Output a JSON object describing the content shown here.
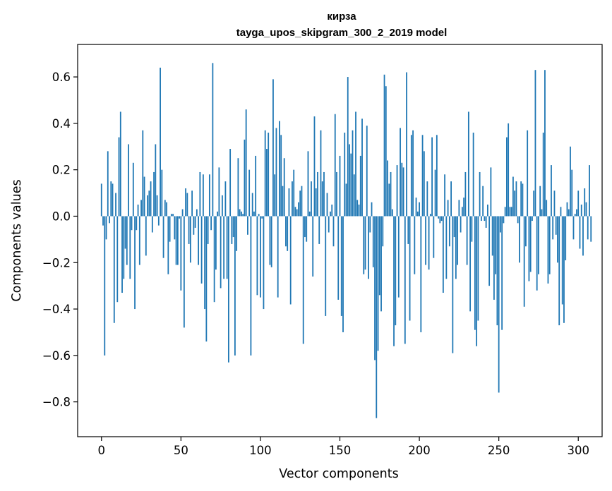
{
  "chart_data": {
    "type": "bar",
    "title": "кирза",
    "subtitle": "tayga_upos_skipgram_300_2_2019 model",
    "xlabel": "Vector components",
    "ylabel": "Components values",
    "xlim": [
      -15,
      315
    ],
    "ylim": [
      -0.95,
      0.74
    ],
    "xticks": [
      0,
      50,
      100,
      150,
      200,
      250,
      300
    ],
    "yticks": [
      -0.8,
      -0.6,
      -0.4,
      -0.2,
      0.0,
      0.2,
      0.4,
      0.6
    ],
    "ytick_labels": [
      "−0.8",
      "−0.6",
      "−0.4",
      "−0.2",
      "0.0",
      "0.2",
      "0.4",
      "0.6"
    ],
    "bar_color": "#1f77b4",
    "grid": false,
    "series": [
      {
        "name": "кирза",
        "values": [
          0.14,
          -0.04,
          -0.6,
          -0.1,
          0.28,
          -0.03,
          0.15,
          0.14,
          -0.46,
          0.1,
          -0.37,
          0.34,
          0.45,
          -0.33,
          -0.27,
          -0.14,
          -0.21,
          0.31,
          -0.27,
          -0.06,
          0.23,
          -0.4,
          -0.06,
          0.05,
          -0.21,
          0.07,
          0.37,
          0.17,
          -0.17,
          0.09,
          0.11,
          0.15,
          -0.07,
          0.19,
          0.31,
          0.09,
          -0.04,
          0.64,
          0.2,
          -0.18,
          0.07,
          0.06,
          -0.25,
          -0.11,
          0.01,
          0.01,
          -0.1,
          -0.21,
          -0.21,
          -0.01,
          -0.32,
          0.03,
          -0.48,
          0.12,
          0.1,
          -0.12,
          -0.2,
          0.11,
          -0.08,
          -0.05,
          0.03,
          -0.21,
          0.19,
          -0.29,
          0.18,
          -0.4,
          -0.54,
          -0.12,
          0.18,
          -0.06,
          0.66,
          -0.37,
          -0.23,
          0.02,
          0.21,
          -0.31,
          0.09,
          -0.27,
          0.15,
          -0.27,
          -0.63,
          0.29,
          -0.12,
          -0.09,
          -0.6,
          -0.15,
          0.25,
          0.03,
          0.02,
          0.01,
          0.33,
          0.46,
          -0.08,
          0.2,
          -0.6,
          0.1,
          0.02,
          0.26,
          -0.34,
          0.01,
          -0.35,
          -0.01,
          -0.4,
          0.37,
          0.29,
          0.36,
          -0.21,
          -0.22,
          0.59,
          0.18,
          0.38,
          -0.35,
          0.41,
          0.35,
          0.13,
          0.25,
          -0.13,
          -0.15,
          0.12,
          -0.38,
          0.15,
          0.2,
          0.04,
          0.03,
          0.06,
          0.11,
          0.13,
          -0.55,
          -0.09,
          -0.11,
          0.28,
          0.02,
          0.15,
          -0.26,
          0.43,
          0.12,
          0.19,
          -0.12,
          0.37,
          0.15,
          0.19,
          -0.43,
          0.1,
          -0.07,
          0.02,
          0.05,
          -0.13,
          0.44,
          0.19,
          -0.36,
          0.26,
          -0.43,
          -0.5,
          0.36,
          0.14,
          0.6,
          0.31,
          0.27,
          0.37,
          0.18,
          0.45,
          0.07,
          0.05,
          0.26,
          0.42,
          -0.25,
          -0.23,
          0.39,
          -0.27,
          -0.07,
          0.06,
          -0.22,
          -0.62,
          -0.87,
          -0.58,
          -0.34,
          -0.41,
          -0.13,
          0.61,
          0.56,
          0.24,
          0.14,
          0.19,
          0.03,
          -0.56,
          -0.47,
          0.22,
          -0.35,
          0.38,
          0.23,
          0.21,
          -0.55,
          0.62,
          -0.12,
          -0.45,
          0.35,
          0.37,
          -0.25,
          0.08,
          0.02,
          0.06,
          -0.5,
          0.35,
          0.28,
          -0.21,
          0.15,
          -0.23,
          0.01,
          0.34,
          -0.18,
          0.2,
          0.35,
          -0.01,
          -0.03,
          -0.02,
          -0.33,
          0.18,
          -0.27,
          0.07,
          -0.13,
          0.15,
          -0.59,
          -0.09,
          -0.27,
          -0.21,
          0.07,
          -0.07,
          0.04,
          0.08,
          0.19,
          -0.21,
          0.45,
          -0.41,
          -0.11,
          0.36,
          -0.49,
          -0.56,
          -0.45,
          0.19,
          -0.02,
          0.13,
          -0.02,
          -0.05,
          0.05,
          -0.3,
          0.21,
          -0.17,
          -0.36,
          -0.25,
          -0.47,
          -0.76,
          -0.07,
          -0.49,
          -0.03,
          0.04,
          0.34,
          0.4,
          0.04,
          0.04,
          0.17,
          0.11,
          0.15,
          -0.03,
          -0.2,
          0.15,
          0.14,
          -0.39,
          -0.13,
          0.37,
          -0.28,
          -0.24,
          -0.02,
          0.11,
          0.63,
          -0.32,
          -0.25,
          0.13,
          0.03,
          0.36,
          0.63,
          0.07,
          -0.29,
          -0.25,
          0.22,
          -0.1,
          0.11,
          -0.08,
          -0.2,
          -0.47,
          0.04,
          -0.38,
          -0.46,
          -0.19,
          0.06,
          0.03,
          0.3,
          0.2,
          -0.1,
          0.01,
          0.03,
          0.11,
          -0.14,
          0.05,
          -0.17,
          0.12,
          0.06,
          -0.1,
          0.22,
          -0.11
        ]
      }
    ]
  }
}
